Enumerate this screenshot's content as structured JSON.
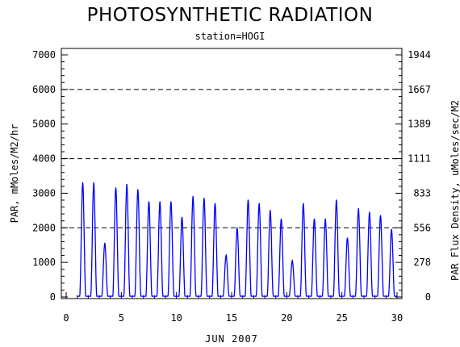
{
  "chart_data": {
    "type": "line",
    "title": "PHOTOSYNTHETIC RADIATION",
    "subtitle": "station=HOGI",
    "xlabel": "JUN 2007",
    "ylabel": "PAR, mMoles/M2/hr",
    "ylabel_right": "PAR Flux Density, uMoles/sec/M2",
    "xlim": [
      0,
      30
    ],
    "ylim": [
      0,
      7000
    ],
    "x_ticks": [
      0,
      5,
      10,
      15,
      20,
      25,
      30
    ],
    "y_ticks": [
      0,
      1000,
      2000,
      3000,
      4000,
      5000,
      6000,
      7000
    ],
    "y_right_ticks": [
      "0",
      "278",
      "556",
      "833",
      "1111",
      "1389",
      "1667",
      "1944"
    ],
    "grid": "dashed horizontal at 2000, 4000, 6000",
    "series": [
      {
        "color": "#0000ff",
        "daily_peaks": [
          {
            "day": 1,
            "peak": 3300
          },
          {
            "day": 2,
            "peak": 3300
          },
          {
            "day": 3,
            "peak": 1550
          },
          {
            "day": 4,
            "peak": 3150
          },
          {
            "day": 5,
            "peak": 3250
          },
          {
            "day": 6,
            "peak": 3100
          },
          {
            "day": 7,
            "peak": 2750
          },
          {
            "day": 8,
            "peak": 2750
          },
          {
            "day": 9,
            "peak": 2750
          },
          {
            "day": 10,
            "peak": 2300
          },
          {
            "day": 11,
            "peak": 2900
          },
          {
            "day": 12,
            "peak": 2850
          },
          {
            "day": 13,
            "peak": 2700
          },
          {
            "day": 14,
            "peak": 1200
          },
          {
            "day": 15,
            "peak": 2000
          },
          {
            "day": 16,
            "peak": 2800
          },
          {
            "day": 17,
            "peak": 2700
          },
          {
            "day": 18,
            "peak": 2500
          },
          {
            "day": 19,
            "peak": 2250
          },
          {
            "day": 20,
            "peak": 1050
          },
          {
            "day": 21,
            "peak": 2700
          },
          {
            "day": 22,
            "peak": 2250
          },
          {
            "day": 23,
            "peak": 2250
          },
          {
            "day": 24,
            "peak": 2800
          },
          {
            "day": 25,
            "peak": 1700
          },
          {
            "day": 26,
            "peak": 2550
          },
          {
            "day": 27,
            "peak": 2450
          },
          {
            "day": 28,
            "peak": 2350
          },
          {
            "day": 29,
            "peak": 1950
          }
        ]
      }
    ]
  }
}
